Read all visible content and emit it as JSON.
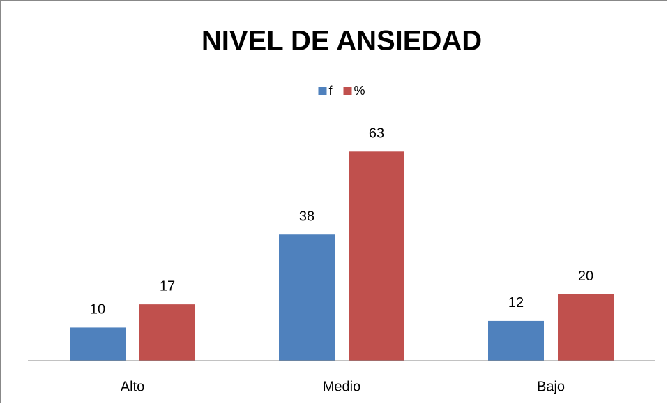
{
  "chart_data": {
    "type": "bar",
    "title": "NIVEL DE ANSIEDAD",
    "categories": [
      "Alto",
      "Medio",
      "Bajo"
    ],
    "series": [
      {
        "name": "f",
        "color": "#4f81bd",
        "values": [
          10,
          38,
          12
        ]
      },
      {
        "name": "%",
        "color": "#c0504d",
        "values": [
          17,
          63,
          20
        ]
      }
    ],
    "ylim": [
      0,
      70
    ],
    "legend": "top"
  }
}
